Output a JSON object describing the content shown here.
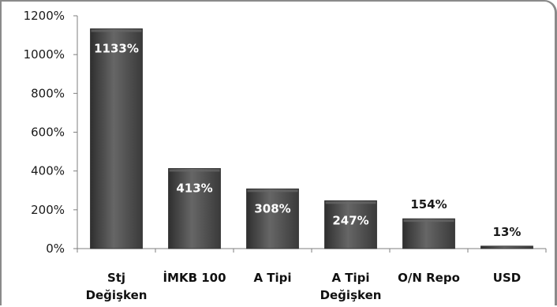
{
  "chart_data": {
    "type": "bar",
    "title": "",
    "xlabel": "",
    "ylabel": "",
    "categories": [
      [
        "Stj",
        "Değişken"
      ],
      [
        "İMKB 100"
      ],
      [
        "A Tipi"
      ],
      [
        "A Tipi",
        "Değişken"
      ],
      [
        "O/N Repo"
      ],
      [
        "USD"
      ]
    ],
    "values": [
      1133,
      413,
      308,
      247,
      154,
      13
    ],
    "data_labels": [
      "1133%",
      "413%",
      "308%",
      "247%",
      "154%",
      "13%"
    ],
    "ylim": [
      0,
      1200
    ],
    "yticks": [
      0,
      200,
      400,
      600,
      800,
      1000,
      1200
    ],
    "ytick_labels": [
      "0%",
      "200%",
      "400%",
      "600%",
      "800%",
      "1000%",
      "1200%"
    ],
    "grid": false,
    "legend": "none",
    "colors": {
      "bar": "#4d4d4d",
      "bar_light": "#6a6a6a",
      "bar_dark": "#2f2f2f",
      "label_inside": "#ffffff",
      "label_outside": "#1a1a1a",
      "axis": "#7f7f7f"
    }
  }
}
